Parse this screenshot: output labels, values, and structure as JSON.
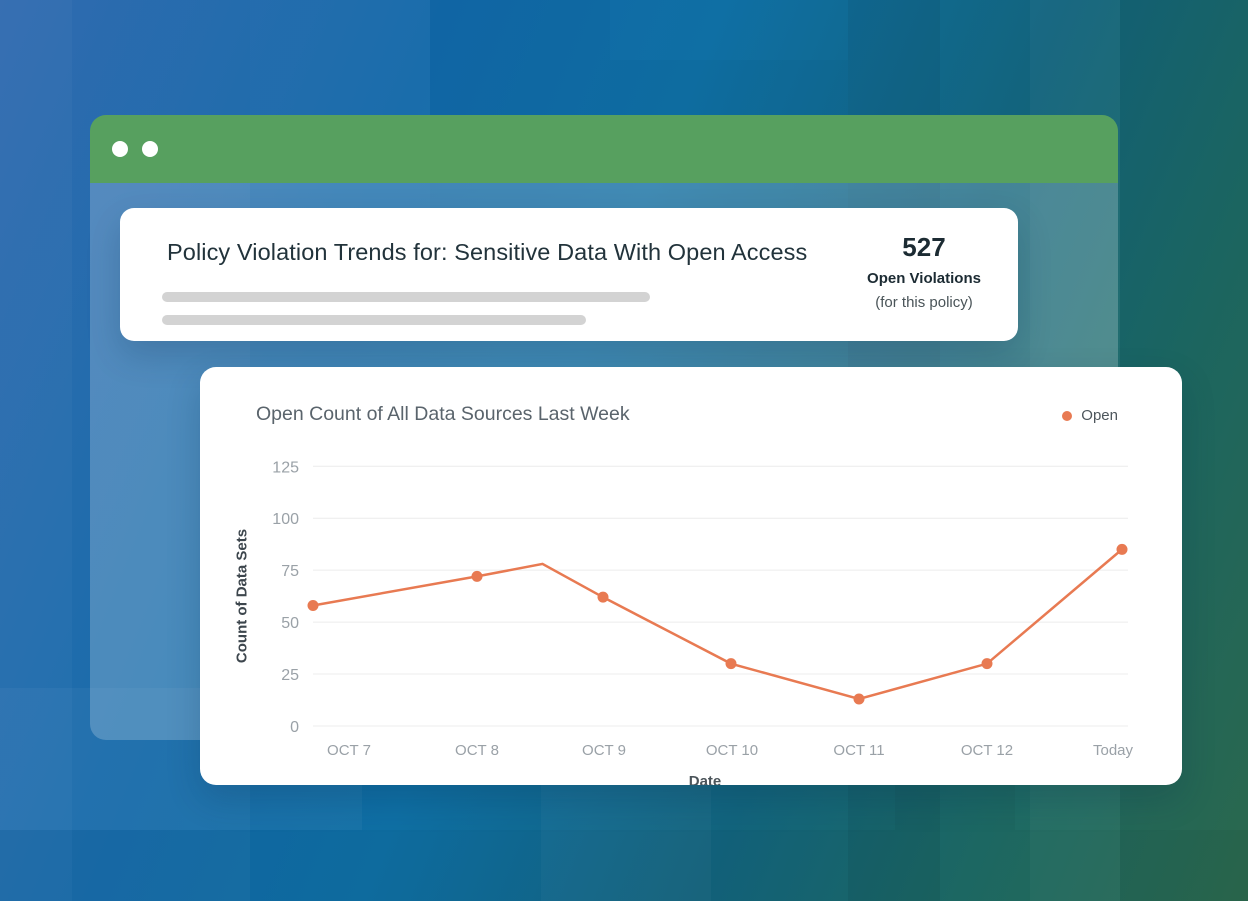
{
  "window": {
    "type": "browser-mockup",
    "header_color": "#57A05F",
    "control_dots": 2
  },
  "header_card": {
    "title": "Policy Violation Trends for: Sensitive Data With Open Access",
    "stat_value": "527",
    "stat_label": "Open Violations",
    "stat_sublabel": "(for this policy)",
    "skeleton_placeholders": 2
  },
  "chart_card": {
    "title": "Open Count of All Data Sources Last Week"
  },
  "chart_data": {
    "type": "line",
    "title": "Open Count of All Data Sources Last Week",
    "categories": [
      "OCT 7",
      "OCT 8",
      "OCT 9",
      "OCT 10",
      "OCT 11",
      "OCT 12",
      "Today"
    ],
    "series": [
      {
        "name": "Open",
        "color": "#E87A52",
        "values": [
          58,
          72,
          62,
          30,
          13,
          30,
          85
        ]
      }
    ],
    "unmarked_peak": {
      "between_categories": [
        "OCT 8",
        "OCT 9"
      ],
      "value": 78,
      "position_fraction": 0.52
    },
    "xlabel": "Date",
    "ylabel": "Count of Data Sets",
    "yticks": [
      0,
      25,
      50,
      75,
      100,
      125
    ],
    "ylim": [
      0,
      131
    ],
    "grid": true,
    "gridline_color": "#ECECEC",
    "tick_label_color": "#9AA1A7",
    "legend_position": "top-right"
  },
  "colors": {
    "window_header_green": "#57A05F",
    "accent_orange": "#E87A52",
    "background_blue": "#2B67AE",
    "background_teal": "#12647D",
    "background_green": "#2E6E52",
    "card_white": "#FFFFFF",
    "skeleton_gray": "#D3D3D3"
  }
}
